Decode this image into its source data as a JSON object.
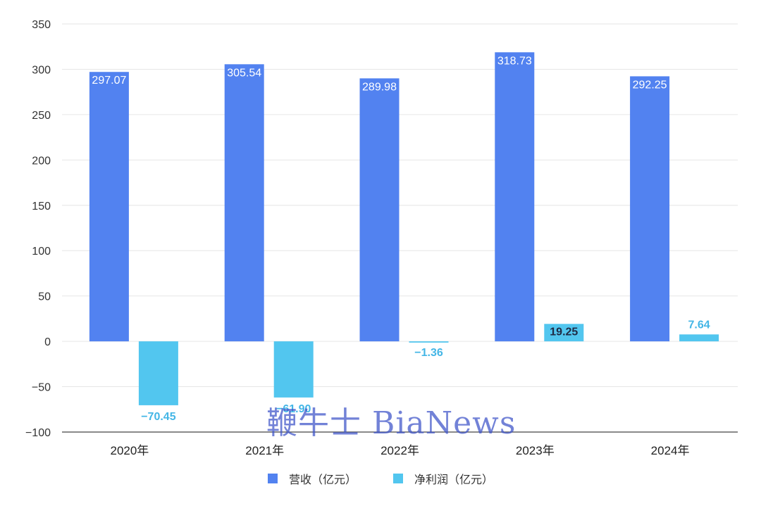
{
  "chart_data": {
    "type": "bar",
    "categories": [
      "2020年",
      "2021年",
      "2022年",
      "2023年",
      "2024年"
    ],
    "series": [
      {
        "name": "营收（亿元）",
        "color": "#5282F0",
        "values": [
          297.07,
          305.54,
          289.98,
          318.73,
          292.25
        ],
        "labels": [
          "297.07",
          "305.54",
          "289.98",
          "318.73",
          "292.25"
        ]
      },
      {
        "name": "净利润（亿元）",
        "color": "#52C6EF",
        "values": [
          -70.45,
          -61.9,
          -1.36,
          19.25,
          7.64
        ],
        "labels": [
          "−70.45",
          "−61.90",
          "−1.36",
          "19.25",
          "7.64"
        ]
      }
    ],
    "ylim": [
      -100,
      350
    ],
    "yticks": [
      -100,
      -50,
      0,
      50,
      100,
      150,
      200,
      250,
      300,
      350
    ],
    "ytick_labels": [
      "−100",
      "−50",
      "0",
      "50",
      "100",
      "150",
      "200",
      "250",
      "300",
      "350"
    ],
    "grid": true,
    "legend_position": "bottom"
  },
  "watermark": "鞭牛士 BiaNews"
}
